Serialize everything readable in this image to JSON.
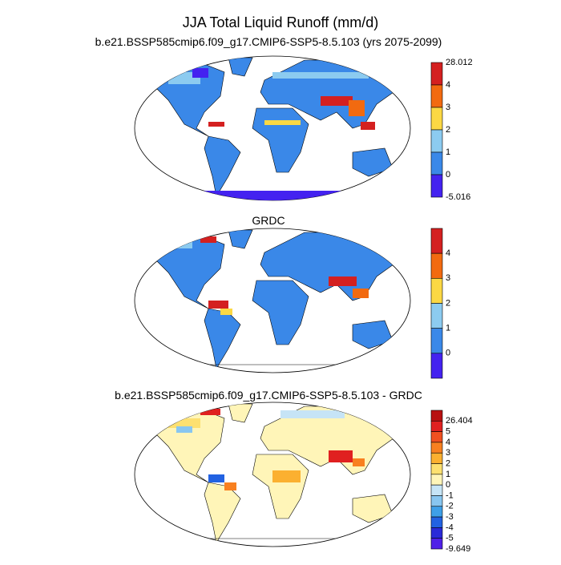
{
  "title": "JJA Total Liquid Runoff (mm/d)",
  "panels": [
    {
      "subtitle": "b.e21.BSSP585cmip6.f09_g17.CMIP6-SSP5-8.5.103 (yrs 2075-2099)",
      "colorbar": {
        "colors": [
          "#d42020",
          "#f26a10",
          "#fbd844",
          "#8ccbf0",
          "#3a88e8",
          "#4422f0"
        ],
        "labels": [
          28.012,
          4,
          3,
          2,
          1,
          0,
          -5.016
        ]
      }
    },
    {
      "subtitle": "GRDC",
      "colorbar": {
        "colors": [
          "#d42020",
          "#f26a10",
          "#fbd844",
          "#8ccbf0",
          "#3a88e8",
          "#4422f0"
        ],
        "labels": [
          4,
          3,
          2,
          1,
          0
        ]
      }
    },
    {
      "subtitle": "b.e21.BSSP585cmip6.f09_g17.CMIP6-SSP5-8.5.103 - GRDC",
      "colorbar": {
        "colors": [
          "#b81010",
          "#e02020",
          "#f05020",
          "#f88020",
          "#fbb030",
          "#fde070",
          "#fff5b8",
          "#c6e4f6",
          "#88c6f0",
          "#3ea0e8",
          "#2262e2",
          "#2a2ad8",
          "#5020e8"
        ],
        "labels": [
          26.404,
          5,
          4,
          3,
          2,
          1,
          0,
          -1,
          -2,
          -3,
          -4,
          -5,
          -9.649
        ]
      }
    }
  ]
}
